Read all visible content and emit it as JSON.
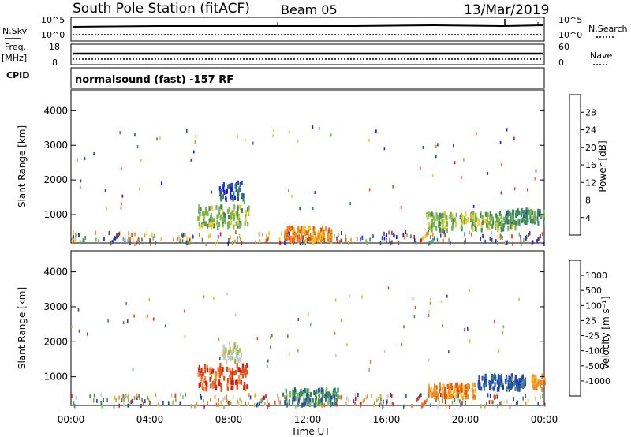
{
  "header": {
    "station": "South Pole Station (fitACF)",
    "beam": "Beam 05",
    "date": "13/Mar/2019"
  },
  "strip_labels": {
    "nsky": "N.Sky",
    "freq": "Freq.",
    "mhz": "[MHz]",
    "cpid": "CPID",
    "nsearch": "N.Search",
    "nave": "Nave",
    "nsky_top": "10^5",
    "nsky_bottom": "10^0",
    "freq_top": "18",
    "freq_bottom": "8",
    "nave_top": "60",
    "nave_bottom": "0",
    "cpid_text": "normalsound (fast) -157 RF"
  },
  "chart_data": [
    {
      "type": "heatmap",
      "name": "power",
      "ylabel": "Slant Range [km]",
      "ylim": [
        180,
        4600
      ],
      "xlim": [
        0,
        24
      ],
      "yticks": [
        "1000",
        "2000",
        "3000",
        "4000"
      ],
      "colorbar_label": "Power [dB]",
      "colorbar_ticks": [
        "4",
        "8",
        "12",
        "16",
        "20",
        "24",
        "28"
      ],
      "colors": [
        "#1414ff",
        "#2850a8",
        "#3c8c5a",
        "#78b450",
        "#f0c81e",
        "#f08c1e",
        "#e65014",
        "#e61414"
      ],
      "regions": [
        {
          "t": [
            6.4,
            9.0
          ],
          "r": [
            700,
            1300
          ],
          "color_index": 3
        },
        {
          "t": [
            7.5,
            8.7
          ],
          "r": [
            1500,
            2000
          ],
          "color_index": 1
        },
        {
          "t": [
            10.8,
            13.2
          ],
          "r": [
            300,
            700
          ],
          "color_index": 5
        },
        {
          "t": [
            18.0,
            22.5
          ],
          "r": [
            600,
            1100
          ],
          "color_index": 3
        },
        {
          "t": [
            22.0,
            24.0
          ],
          "r": [
            800,
            1200
          ],
          "color_index": 2
        }
      ]
    },
    {
      "type": "heatmap",
      "name": "velocity",
      "ylabel": "Slant Range [km]",
      "ylim": [
        180,
        4600
      ],
      "xlim": [
        0,
        24
      ],
      "yticks": [
        "1000",
        "2000",
        "3000",
        "4000"
      ],
      "colorbar_label": "Velocity [m s⁻¹]",
      "colorbar_ticks": [
        "1000",
        "500",
        "100",
        "25",
        "-25",
        "-100",
        "-500",
        "-1000"
      ],
      "colors": [
        "#1e3cc8",
        "#2850a8",
        "#3c8c5a",
        "#78c850",
        "#c8c8c8",
        "#f0b41e",
        "#f08c1e",
        "#e65014",
        "#e61414"
      ],
      "regions": [
        {
          "t": [
            6.4,
            9.0
          ],
          "r": [
            700,
            1400
          ],
          "color_index": 7
        },
        {
          "t": [
            7.6,
            8.6
          ],
          "r": [
            1500,
            2000
          ],
          "color_index": 4
        },
        {
          "t": [
            10.8,
            13.5
          ],
          "r": [
            250,
            700
          ],
          "color_index": 2
        },
        {
          "t": [
            18.0,
            20.5
          ],
          "r": [
            450,
            850
          ],
          "color_index": 6
        },
        {
          "t": [
            20.5,
            23.0
          ],
          "r": [
            700,
            1100
          ],
          "color_index": 1
        },
        {
          "t": [
            23.3,
            24.0
          ],
          "r": [
            700,
            1100
          ],
          "color_index": 6
        }
      ]
    }
  ],
  "x_axis": {
    "ticks": [
      "00:00",
      "04:00",
      "08:00",
      "12:00",
      "16:00",
      "20:00",
      "00:00"
    ],
    "label": "Time UT"
  }
}
